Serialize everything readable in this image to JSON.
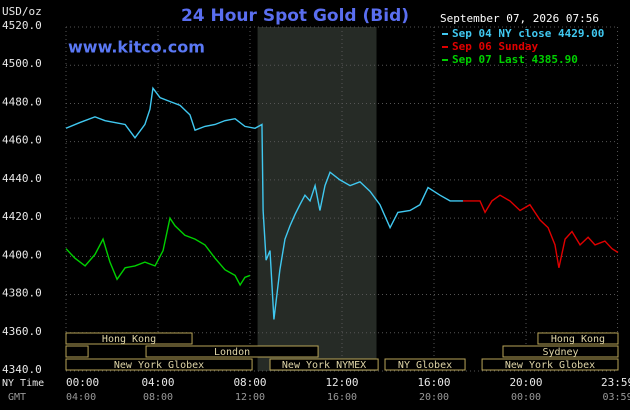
{
  "chart_data": {
    "type": "line",
    "title": "24 Hour Spot Gold (Bid)",
    "watermark": "www.kitco.com",
    "timestamp": "September 07, 2026 07:56",
    "ylabel": "USD/oz",
    "x_row_labels": [
      "NY Time",
      "GMT"
    ],
    "xlim": [
      0,
      24
    ],
    "ylim": [
      4340,
      4520
    ],
    "xticks": [
      {
        "value": 0,
        "label": "00:00"
      },
      {
        "value": 4,
        "label": "04:00"
      },
      {
        "value": 8,
        "label": "08:00"
      },
      {
        "value": 12,
        "label": "12:00"
      },
      {
        "value": 16,
        "label": "16:00"
      },
      {
        "value": 20,
        "label": "20:00"
      },
      {
        "value": 23.98,
        "label": "23:59"
      }
    ],
    "gmt_tick_labels": [
      "04:00",
      "08:00",
      "12:00",
      "16:00",
      "20:00",
      "00:00",
      "03:59"
    ],
    "yticks": [
      {
        "value": 4340,
        "label": "4340.0"
      },
      {
        "value": 4360,
        "label": "4360.0"
      },
      {
        "value": 4380,
        "label": "4380.0"
      },
      {
        "value": 4400,
        "label": "4400.0"
      },
      {
        "value": 4420,
        "label": "4420.0"
      },
      {
        "value": 4440,
        "label": "4440.0"
      },
      {
        "value": 4460,
        "label": "4460.0"
      },
      {
        "value": 4480,
        "label": "4480.0"
      },
      {
        "value": 4500,
        "label": "4500.0"
      },
      {
        "value": 4520,
        "label": "4520.0"
      }
    ],
    "grid": true,
    "shaded_range": [
      8.33,
      13.5
    ],
    "series": [
      {
        "name": "Sep 04 NY close 4429.00",
        "color": "#40c8f0",
        "x": [
          0,
          0.6,
          1.26,
          1.7,
          2.13,
          2.57,
          3,
          3.43,
          3.65,
          3.78,
          4.09,
          4.52,
          4.96,
          5.39,
          5.61,
          6.04,
          6.48,
          6.91,
          7.35,
          7.78,
          8.22,
          8.52,
          8.57,
          8.7,
          8.87,
          9.04,
          9.3,
          9.52,
          9.74,
          9.96,
          10.17,
          10.39,
          10.61,
          10.83,
          11.04,
          11.26,
          11.48,
          11.91,
          12.35,
          12.78,
          13.22,
          13.65,
          14.09,
          14.43,
          14.96,
          15.39,
          15.74,
          16.26,
          16.7,
          17.26
        ],
        "values": [
          4467,
          4470,
          4473,
          4471,
          4470,
          4469,
          4462,
          4469,
          4477,
          4488,
          4483,
          4481,
          4479,
          4474,
          4466,
          4468,
          4469,
          4471,
          4472,
          4468,
          4467,
          4469,
          4424,
          4398,
          4403,
          4367,
          4393,
          4409,
          4416,
          4422,
          4427,
          4432,
          4429,
          4437,
          4424,
          4437,
          4444,
          4440,
          4437,
          4439,
          4434,
          4427,
          4415,
          4423,
          4424,
          4427,
          4436,
          4432,
          4429,
          4429
        ]
      },
      {
        "name": "Sep 06 Sunday",
        "color": "#e00000",
        "x": [
          17.26,
          18,
          18.22,
          18.52,
          18.87,
          19.3,
          19.74,
          20.17,
          20.61,
          20.96,
          21.26,
          21.43,
          21.7,
          22,
          22.35,
          22.7,
          23,
          23.43,
          23.74,
          24
        ],
        "values": [
          4429,
          4429,
          4423,
          4429,
          4432,
          4429,
          4424,
          4427,
          4419,
          4415,
          4406,
          4394,
          4409,
          4413,
          4406,
          4410,
          4406,
          4408,
          4404,
          4402
        ]
      },
      {
        "name": "Sep 07 Last 4385.90",
        "color": "#00d000",
        "x": [
          0,
          0.39,
          0.83,
          1.26,
          1.61,
          1.91,
          2.22,
          2.57,
          3,
          3.43,
          3.87,
          4.22,
          4.52,
          4.74,
          5.17,
          5.61,
          6.04,
          6.48,
          6.91,
          7.35,
          7.57,
          7.78,
          8
        ],
        "values": [
          4404,
          4399,
          4395,
          4401,
          4409,
          4397,
          4388,
          4394,
          4395,
          4397,
          4395,
          4403,
          4420,
          4416,
          4411,
          4409,
          4406,
          4399,
          4393,
          4390,
          4385,
          4389,
          4390
        ]
      }
    ],
    "sessions": [
      {
        "label": "Hong Kong",
        "row": 0,
        "start": 0,
        "end": 5.48
      },
      {
        "label": "Hong Kong",
        "row": 0,
        "start": 20.52,
        "end": 24
      },
      {
        "row": 1,
        "start": 0,
        "end": 0.96
      },
      {
        "label": "London",
        "row": 1,
        "start": 3.48,
        "end": 10.96
      },
      {
        "label": "Sydney",
        "row": 1,
        "start": 19,
        "end": 24
      },
      {
        "label": "New York Globex",
        "row": 2,
        "start": 0,
        "end": 8.09
      },
      {
        "label": "New York NYMEX",
        "row": 2,
        "start": 8.87,
        "end": 13.57
      },
      {
        "label": "NY Globex",
        "row": 2,
        "start": 13.87,
        "end": 17.35
      },
      {
        "label": "New York Globex",
        "row": 2,
        "start": 18.09,
        "end": 24
      }
    ]
  }
}
